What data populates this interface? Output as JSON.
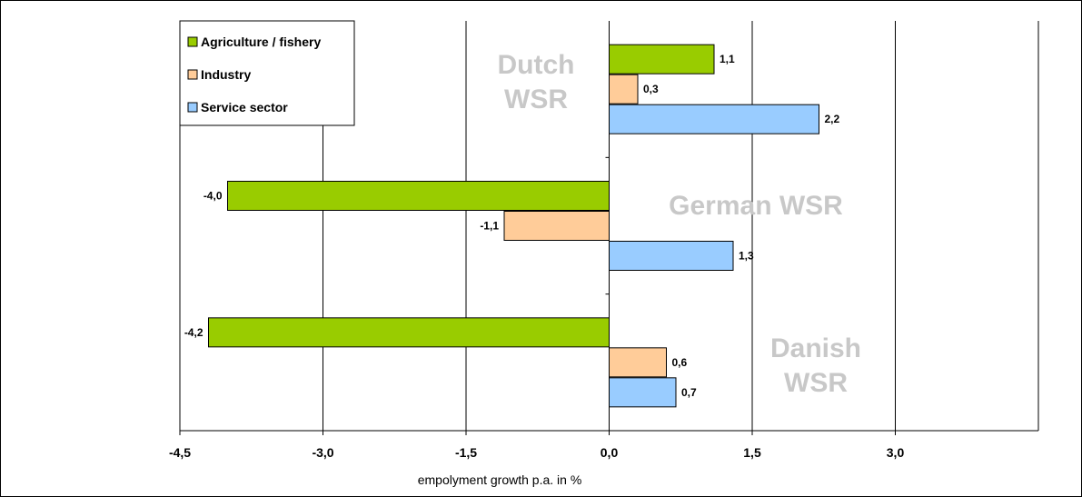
{
  "chart_data": {
    "type": "bar",
    "orientation": "horizontal",
    "categories": [
      "Dutch WSR",
      "German WSR",
      "Danish WSR"
    ],
    "category_labels": [
      [
        "Dutch",
        "WSR"
      ],
      [
        "German WSR"
      ],
      [
        "Danish",
        "WSR"
      ]
    ],
    "series": [
      {
        "name": "Agriculture / fishery",
        "color": "#99cc00",
        "values": [
          1.1,
          -4.0,
          -4.2
        ],
        "labels": [
          "1,1",
          "-4,0",
          "-4,2"
        ]
      },
      {
        "name": "Industry",
        "color": "#ffcc99",
        "values": [
          0.3,
          -1.1,
          0.6
        ],
        "labels": [
          "0,3",
          "-1,1",
          "0,6"
        ]
      },
      {
        "name": "Service sector",
        "color": "#99ccff",
        "values": [
          2.2,
          1.3,
          0.7
        ],
        "labels": [
          "2,2",
          "1,3",
          "0,7"
        ]
      }
    ],
    "xlim": [
      -4.5,
      4.5
    ],
    "xticks": [
      -4.5,
      -3.0,
      -1.5,
      0.0,
      1.5,
      3.0
    ],
    "xtick_labels": [
      "-4,5",
      "-3,0",
      "-1,5",
      "0,0",
      "1,5",
      "3,0"
    ],
    "xlabel": "empolyment growth p.a. in %",
    "ylabel": "",
    "title": "",
    "grid": "vertical",
    "legend_position": "top-left"
  }
}
